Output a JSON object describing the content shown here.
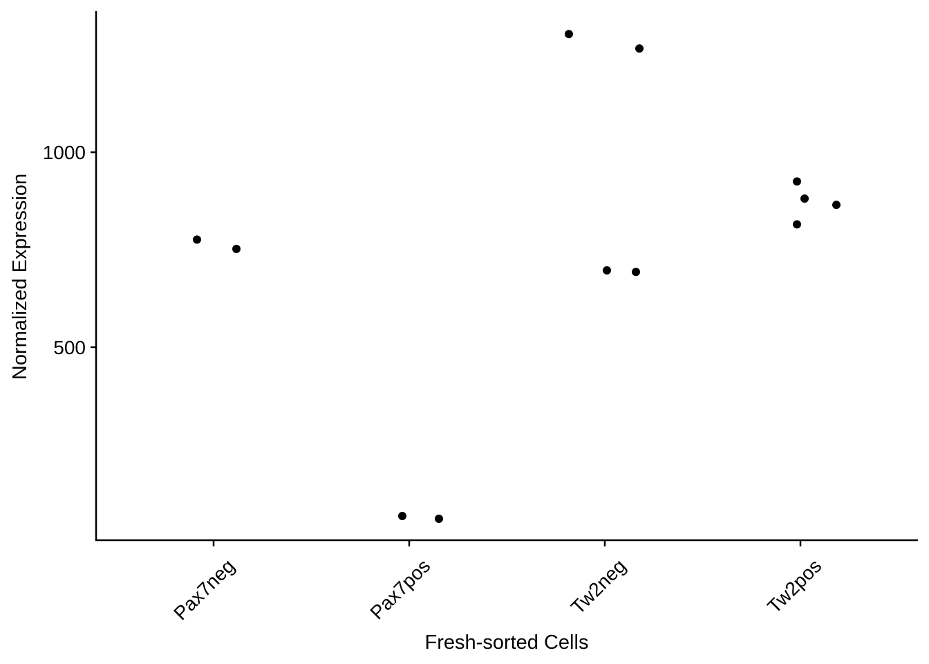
{
  "chart_data": {
    "type": "scatter",
    "title": "",
    "xlabel": "Fresh-sorted Cells",
    "ylabel": "Normalized Expression",
    "categories": [
      "Pax7neg",
      "Pax7pos",
      "Tw2neg",
      "Tw2pos"
    ],
    "y_ticks": [
      500,
      1000
    ],
    "ylim": [
      5,
      1362
    ],
    "grid": false,
    "point_color": "#000000",
    "points": [
      {
        "category": "Pax7neg",
        "y": 776
      },
      {
        "category": "Pax7neg",
        "y": 752
      },
      {
        "category": "Pax7pos",
        "y": 67
      },
      {
        "category": "Pax7pos",
        "y": 60
      },
      {
        "category": "Tw2neg",
        "y": 1303
      },
      {
        "category": "Tw2neg",
        "y": 1266
      },
      {
        "category": "Tw2neg",
        "y": 697
      },
      {
        "category": "Tw2neg",
        "y": 693
      },
      {
        "category": "Tw2pos",
        "y": 925
      },
      {
        "category": "Tw2pos",
        "y": 881
      },
      {
        "category": "Tw2pos",
        "y": 865
      },
      {
        "category": "Tw2pos",
        "y": 815
      }
    ]
  }
}
